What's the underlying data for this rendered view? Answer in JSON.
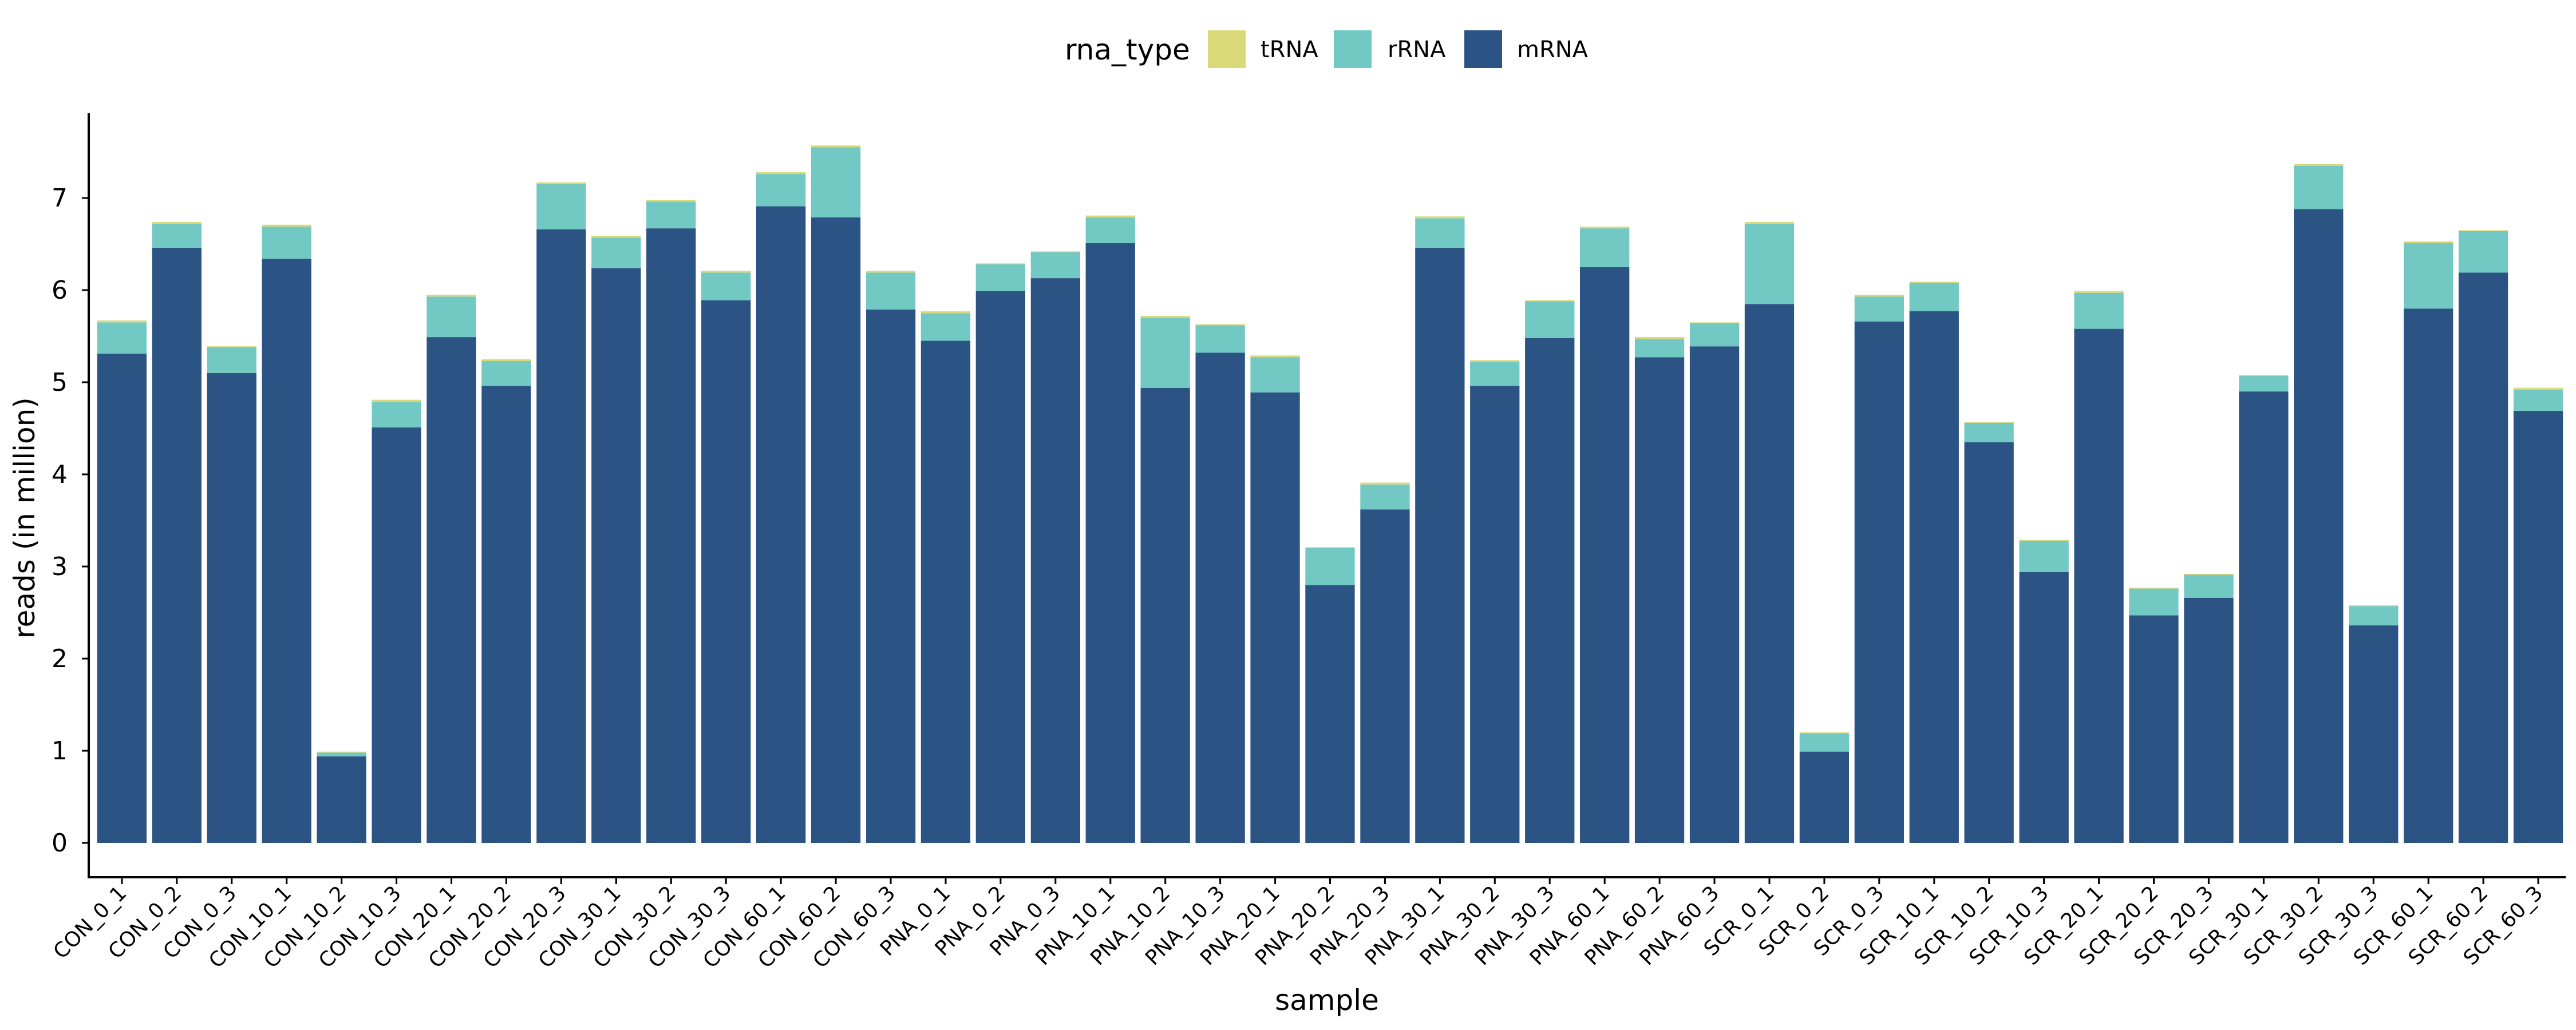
{
  "chart_data": {
    "type": "bar",
    "stacked": true,
    "title": "",
    "xlabel": "sample",
    "ylabel": "reads (in million)",
    "ylim": [
      0,
      7.6
    ],
    "yticks": [
      0,
      1,
      2,
      3,
      4,
      5,
      6,
      7
    ],
    "grid": false,
    "legend": {
      "title": "rna_type",
      "position": "top",
      "entries": [
        "tRNA",
        "rRNA",
        "mRNA"
      ]
    },
    "colors": {
      "tRNA": "#d9d97a",
      "rRNA": "#72c9c4",
      "mRNA": "#2b5484"
    },
    "categories": [
      "CON_0_1",
      "CON_0_2",
      "CON_0_3",
      "CON_10_1",
      "CON_10_2",
      "CON_10_3",
      "CON_20_1",
      "CON_20_2",
      "CON_20_3",
      "CON_30_1",
      "CON_30_2",
      "CON_30_3",
      "CON_60_1",
      "CON_60_2",
      "CON_60_3",
      "PNA_0_1",
      "PNA_0_2",
      "PNA_0_3",
      "PNA_10_1",
      "PNA_10_2",
      "PNA_10_3",
      "PNA_20_1",
      "PNA_20_2",
      "PNA_20_3",
      "PNA_30_1",
      "PNA_30_2",
      "PNA_30_3",
      "PNA_60_1",
      "PNA_60_2",
      "PNA_60_3",
      "SCR_0_1",
      "SCR_0_2",
      "SCR_0_3",
      "SCR_10_1",
      "SCR_10_2",
      "SCR_10_3",
      "SCR_20_1",
      "SCR_20_2",
      "SCR_20_3",
      "SCR_30_1",
      "SCR_30_2",
      "SCR_30_3",
      "SCR_60_1",
      "SCR_60_2",
      "SCR_60_3"
    ],
    "series": [
      {
        "name": "mRNA",
        "values": [
          5.31,
          6.46,
          5.1,
          6.34,
          0.94,
          4.51,
          5.49,
          4.96,
          6.66,
          6.24,
          6.67,
          5.89,
          6.91,
          6.79,
          5.79,
          5.45,
          5.99,
          6.13,
          6.51,
          4.94,
          5.32,
          4.89,
          2.8,
          3.62,
          6.46,
          4.96,
          5.48,
          6.25,
          5.27,
          5.39,
          5.85,
          0.99,
          5.66,
          5.77,
          4.35,
          2.94,
          5.58,
          2.47,
          2.66,
          4.9,
          6.88,
          2.36,
          5.8,
          6.19,
          4.69
        ]
      },
      {
        "name": "rRNA",
        "values": [
          0.34,
          0.26,
          0.28,
          0.35,
          0.04,
          0.28,
          0.44,
          0.27,
          0.49,
          0.33,
          0.29,
          0.3,
          0.35,
          0.76,
          0.4,
          0.3,
          0.29,
          0.28,
          0.28,
          0.76,
          0.3,
          0.38,
          0.4,
          0.27,
          0.32,
          0.26,
          0.4,
          0.42,
          0.2,
          0.25,
          0.87,
          0.2,
          0.27,
          0.31,
          0.21,
          0.34,
          0.39,
          0.29,
          0.25,
          0.17,
          0.47,
          0.21,
          0.71,
          0.45,
          0.23
        ]
      },
      {
        "name": "tRNA",
        "values": [
          0.02,
          0.02,
          0.01,
          0.02,
          0.01,
          0.02,
          0.02,
          0.02,
          0.02,
          0.02,
          0.02,
          0.02,
          0.02,
          0.02,
          0.02,
          0.02,
          0.01,
          0.01,
          0.02,
          0.02,
          0.01,
          0.02,
          0.01,
          0.02,
          0.02,
          0.02,
          0.01,
          0.02,
          0.02,
          0.01,
          0.02,
          0.01,
          0.02,
          0.01,
          0.01,
          0.01,
          0.02,
          0.01,
          0.01,
          0.01,
          0.02,
          0.01,
          0.02,
          0.01,
          0.02
        ]
      }
    ]
  }
}
